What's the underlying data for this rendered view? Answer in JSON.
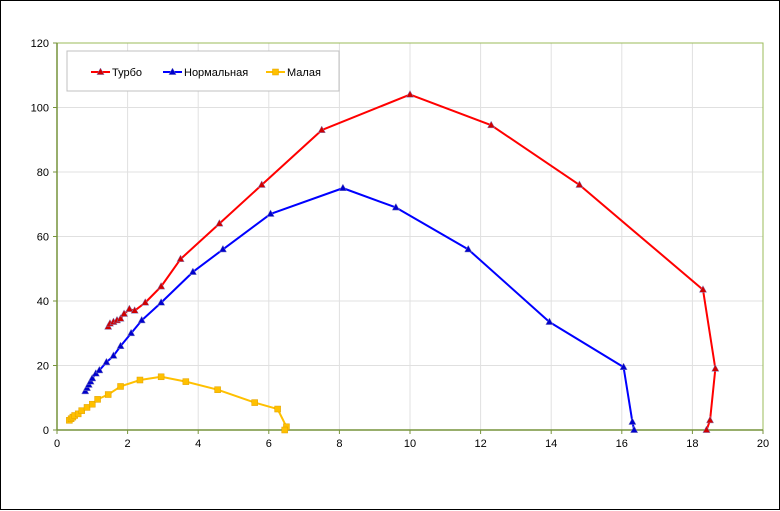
{
  "chart_data": {
    "type": "line",
    "title": "",
    "xlabel": "",
    "ylabel": "",
    "xlim": [
      0,
      20
    ],
    "ylim": [
      0,
      120
    ],
    "x_ticks": [
      "0",
      "2",
      "4",
      "6",
      "8",
      "10",
      "12",
      "14",
      "16",
      "18",
      "20"
    ],
    "y_ticks": [
      "0",
      "20",
      "40",
      "60",
      "80",
      "100",
      "120"
    ],
    "grid": true,
    "legend_position": "top-left",
    "series": [
      {
        "name": "Турбо",
        "color": "#ff0000",
        "marker": "triangle",
        "points": [
          [
            1.45,
            32
          ],
          [
            1.5,
            33
          ],
          [
            1.6,
            33.5
          ],
          [
            1.7,
            34
          ],
          [
            1.8,
            34.5
          ],
          [
            1.9,
            36
          ],
          [
            2.05,
            37.5
          ],
          [
            2.2,
            37
          ],
          [
            2.5,
            39.5
          ],
          [
            2.95,
            44.5
          ],
          [
            3.5,
            53
          ],
          [
            4.6,
            64
          ],
          [
            5.8,
            76
          ],
          [
            7.5,
            93
          ],
          [
            10.0,
            104
          ],
          [
            12.3,
            94.5
          ],
          [
            14.8,
            76
          ],
          [
            18.3,
            43.5
          ],
          [
            18.65,
            19
          ],
          [
            18.5,
            3
          ],
          [
            18.4,
            0
          ]
        ]
      },
      {
        "name": "Нормальная",
        "color": "#0000ff",
        "marker": "triangle",
        "points": [
          [
            0.8,
            12
          ],
          [
            0.85,
            13
          ],
          [
            0.9,
            14
          ],
          [
            0.95,
            15
          ],
          [
            1.0,
            16
          ],
          [
            1.1,
            17.5
          ],
          [
            1.2,
            18.5
          ],
          [
            1.4,
            21
          ],
          [
            1.6,
            23
          ],
          [
            1.8,
            26
          ],
          [
            2.1,
            30
          ],
          [
            2.4,
            34
          ],
          [
            2.95,
            39.5
          ],
          [
            3.85,
            49
          ],
          [
            4.7,
            56
          ],
          [
            6.05,
            67
          ],
          [
            8.1,
            75
          ],
          [
            9.6,
            69
          ],
          [
            11.65,
            56
          ],
          [
            13.95,
            33.5
          ],
          [
            16.05,
            19.5
          ],
          [
            16.3,
            2.5
          ],
          [
            16.35,
            0
          ]
        ]
      },
      {
        "name": "Малая",
        "color": "#ffc000",
        "marker": "square",
        "points": [
          [
            0.35,
            3
          ],
          [
            0.4,
            3.5
          ],
          [
            0.45,
            4
          ],
          [
            0.5,
            4.5
          ],
          [
            0.6,
            5
          ],
          [
            0.7,
            6
          ],
          [
            0.85,
            7
          ],
          [
            1.0,
            8
          ],
          [
            1.15,
            9.5
          ],
          [
            1.45,
            11
          ],
          [
            1.8,
            13.5
          ],
          [
            2.35,
            15.5
          ],
          [
            2.95,
            16.5
          ],
          [
            3.65,
            15
          ],
          [
            4.55,
            12.5
          ],
          [
            5.6,
            8.5
          ],
          [
            6.25,
            6.5
          ],
          [
            6.5,
            1
          ],
          [
            6.45,
            0
          ]
        ]
      }
    ]
  }
}
